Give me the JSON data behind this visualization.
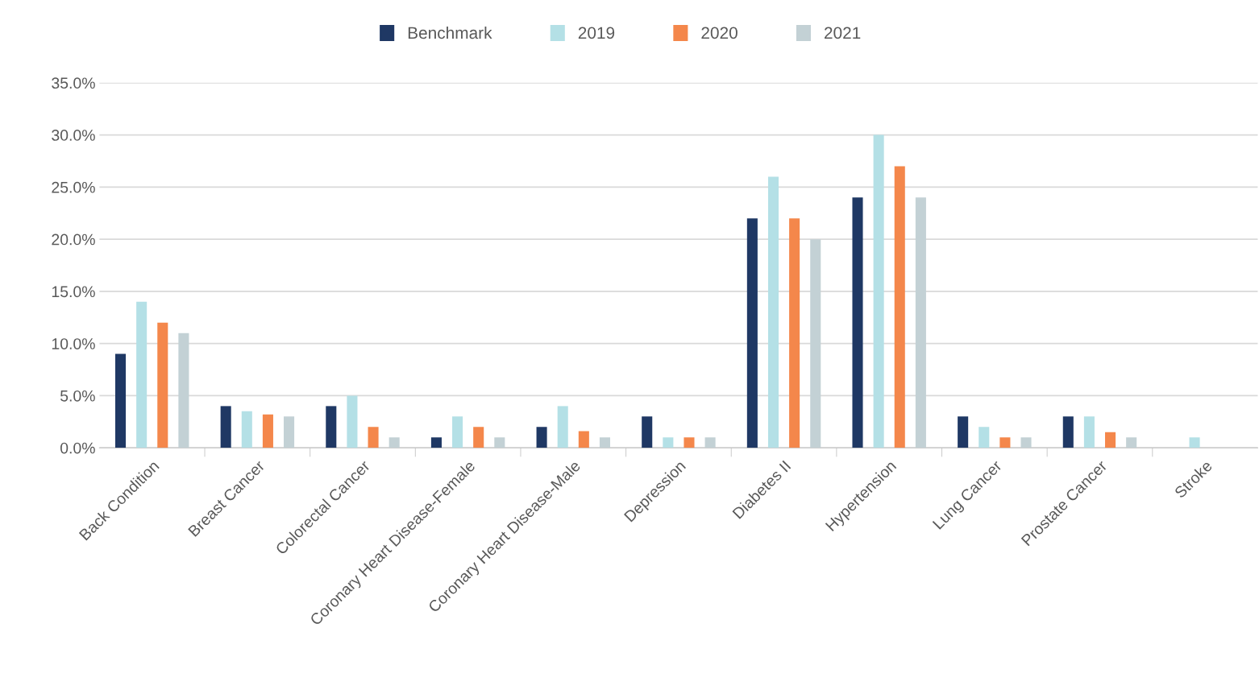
{
  "chart_data": {
    "type": "bar",
    "categories": [
      "Back Condition",
      "Breast Cancer",
      "Colorectal Cancer",
      "Coronary Heart Disease-Female",
      "Coronary Heart Disease-Male",
      "Depression",
      "Diabetes II",
      "Hypertension",
      "Lung Cancer",
      "Prostate Cancer",
      "Stroke"
    ],
    "series": [
      {
        "name": "Benchmark",
        "color": "#1f3864",
        "values": [
          9.0,
          4.0,
          4.0,
          1.0,
          2.0,
          3.0,
          22.0,
          24.0,
          3.0,
          3.0,
          0
        ]
      },
      {
        "name": "2019",
        "color": "#b4e0e6",
        "values": [
          14.0,
          3.5,
          5.0,
          3.0,
          4.0,
          1.0,
          26.0,
          30.0,
          2.0,
          3.0,
          1.0
        ]
      },
      {
        "name": "2020",
        "color": "#f4874b",
        "values": [
          12.0,
          3.2,
          2.0,
          2.0,
          1.6,
          1.0,
          22.0,
          27.0,
          1.0,
          1.5,
          0
        ]
      },
      {
        "name": "2021",
        "color": "#c3d1d5",
        "values": [
          11.0,
          3.0,
          1.0,
          1.0,
          1.0,
          1.0,
          20.0,
          24.0,
          1.0,
          1.0,
          0
        ]
      }
    ],
    "ylim": [
      0,
      35
    ],
    "yticks": [
      {
        "value": 0,
        "label": "0.0%"
      },
      {
        "value": 5,
        "label": "5.0%"
      },
      {
        "value": 10,
        "label": "10.0%"
      },
      {
        "value": 15,
        "label": "15.0%"
      },
      {
        "value": 20,
        "label": "20.0%"
      },
      {
        "value": 25,
        "label": "25.0%"
      },
      {
        "value": 30,
        "label": "30.0%"
      },
      {
        "value": 35,
        "label": "35.0%"
      }
    ],
    "grid": "y",
    "legend": "top"
  }
}
